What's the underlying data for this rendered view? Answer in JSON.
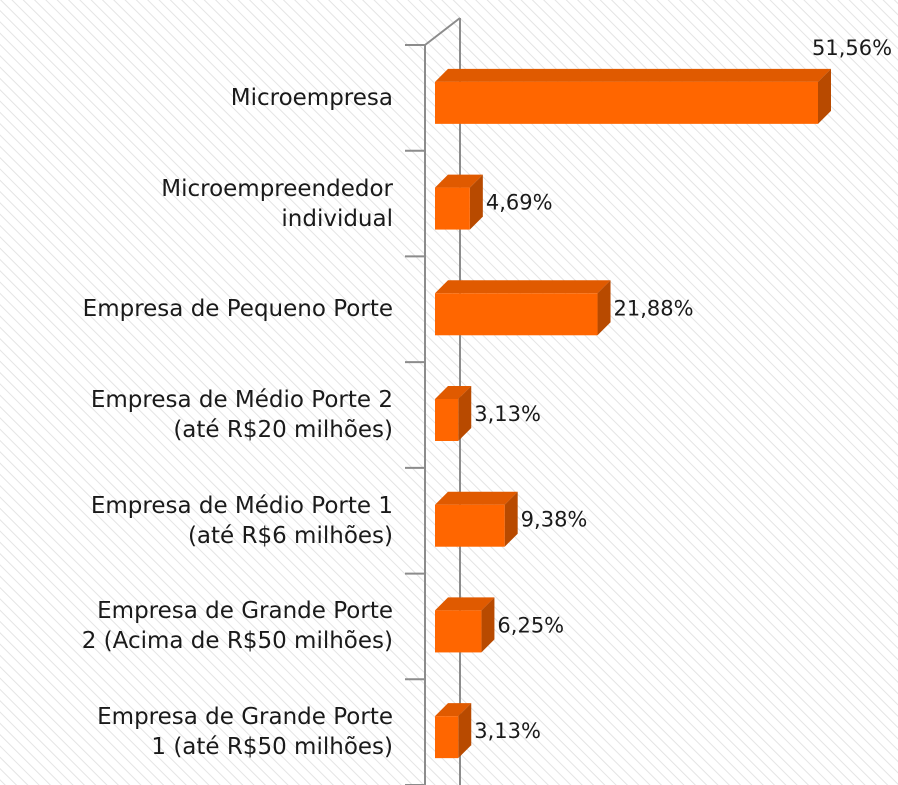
{
  "chart_data": {
    "type": "bar",
    "orientation": "horizontal",
    "categories": [
      "Microempresa",
      "Microempreendedor\nindividual",
      "Empresa de Pequeno Porte",
      "Empresa de Médio Porte 2\n(até R$20 milhões)",
      "Empresa de Médio Porte 1\n(até R$6 milhões)",
      "Empresa de Grande Porte\n2 (Acima de R$50 milhões)",
      "Empresa de Grande Porte\n1 (até R$50 milhões)"
    ],
    "values": [
      51.56,
      4.69,
      21.88,
      3.13,
      9.38,
      6.25,
      3.13
    ],
    "value_labels": [
      "51,56%",
      "4,69%",
      "21,88%",
      "3,13%",
      "9,38%",
      "6,25%",
      "3,13%"
    ],
    "color": "#ff6600"
  }
}
